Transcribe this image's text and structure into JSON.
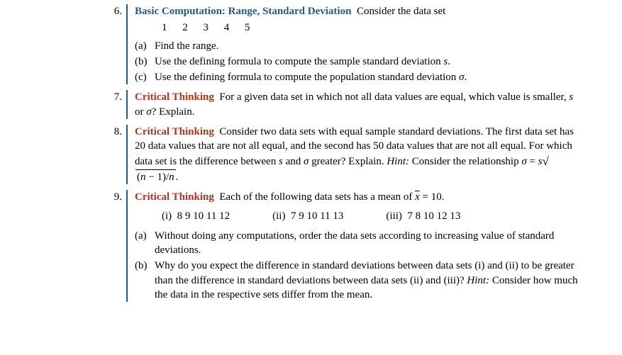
{
  "colors": {
    "rule": "#225a8e",
    "title_blue": "#225a8e",
    "title_red": "#b33320",
    "text": "#000000",
    "bg": "#ffffff"
  },
  "font": {
    "family": "Times New Roman",
    "size_pt": 11
  },
  "problems": [
    {
      "num": "6.",
      "title": "Basic Computation: Range, Standard Deviation",
      "title_color": "blue",
      "lead": "Consider the data set",
      "data_values": [
        "1",
        "2",
        "3",
        "4",
        "5"
      ],
      "subs": [
        {
          "label": "(a)",
          "text": "Find the range."
        },
        {
          "label": "(b)",
          "text_html": "Use the defining formula to compute the sample standard deviation <span class=\"ital\">s</span>."
        },
        {
          "label": "(c)",
          "text_html": "Use the defining formula to compute the population standard deviation <span class=\"ital\">σ</span>."
        }
      ]
    },
    {
      "num": "7.",
      "title": "Critical Thinking",
      "title_color": "red",
      "lead_html": "For a given data set in which not all data values are equal, which value is smaller, <span class=\"ital\">s</span> or <span class=\"ital\">σ</span>? Explain."
    },
    {
      "num": "8.",
      "title": "Critical Thinking",
      "title_color": "red",
      "lead_html": "Consider two data sets with equal sample standard deviations. The first data set has 20 data values that are not all equal, and the second has 50 data values that are not all equal. For which data set is the difference between <span class=\"ital\">s</span> and <span class=\"ital\">σ</span> greater? Explain. <span class=\"ital\">Hint:</span> Consider the relationship <span class=\"ital\">σ</span> = <span class=\"ital\">s</span><span class=\"radical\">√</span><span class=\"sqrt\">(<span class=\"ital\">n</span> − 1)/<span class=\"ital\">n</span></span>."
    },
    {
      "num": "9.",
      "title": "Critical Thinking",
      "title_color": "red",
      "lead_html": "Each of the following data sets has a mean of <span class=\"overline\">x</span> = 10.",
      "roman": [
        {
          "label": "(i)",
          "values": "8  9  10  11  12"
        },
        {
          "label": "(ii)",
          "values": "7  9  10  11  13"
        },
        {
          "label": "(iii)",
          "values": "7  8  10  12  13"
        }
      ],
      "subs": [
        {
          "label": "(a)",
          "text": "Without doing any computations, order the data sets according to increasing value of standard deviations."
        },
        {
          "label": "(b)",
          "text_html": "Why do you expect the difference in standard deviations between data sets (i) and (ii) to be greater than the difference in standard deviations between data sets (ii) and (iii)? <span class=\"ital\">Hint:</span> Consider how much the data in the respective sets differ from the mean."
        }
      ]
    }
  ]
}
